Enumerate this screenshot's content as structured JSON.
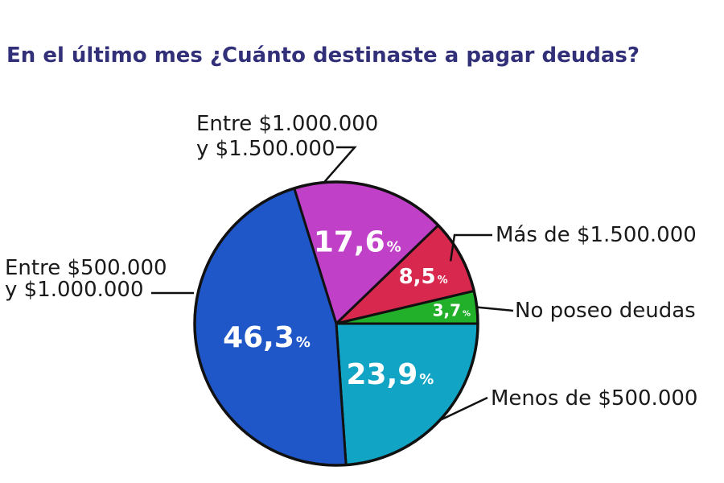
{
  "header": {
    "title": "En el último mes  ¿Cuánto destinaste a pagar deudas?"
  },
  "chart_data": {
    "type": "pie",
    "title": "En el último mes  ¿Cuánto destinaste a pagar deudas?",
    "slices": [
      {
        "label_lines": [
          "Entre $1.000.000",
          "y $1.500.000"
        ],
        "value": 17.6,
        "display": "17,6",
        "color": "#c040c8"
      },
      {
        "label_lines": [
          "Más de $1.500.000"
        ],
        "value": 8.5,
        "display": "8,5",
        "color": "#d8284e"
      },
      {
        "label_lines": [
          "No poseo deudas"
        ],
        "value": 3.7,
        "display": "3,7",
        "color": "#22b02a"
      },
      {
        "label_lines": [
          "Menos de $500.000"
        ],
        "value": 23.9,
        "display": "23,9",
        "color": "#12a4c4"
      },
      {
        "label_lines": [
          "Entre $500.000",
          "y $1.000.000"
        ],
        "value": 46.3,
        "display": "46,3",
        "color": "#1f57c8"
      }
    ],
    "percent_sign": "%",
    "start_angle_deg": -15,
    "direction": "clockwise"
  },
  "colors": {
    "title": "#33307a",
    "outline": "#111111",
    "label_text": "#1a1a1a"
  }
}
